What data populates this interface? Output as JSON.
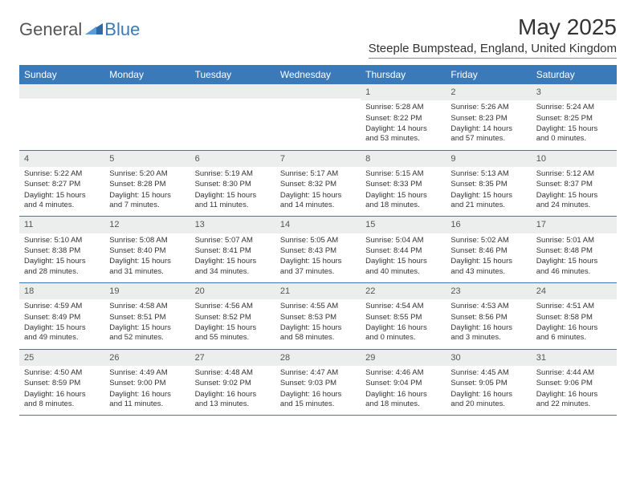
{
  "brand": {
    "general": "General",
    "blue": "Blue"
  },
  "title": "May 2025",
  "location": "Steeple Bumpstead, England, United Kingdom",
  "colors": {
    "header_bg": "#3a7ab8",
    "header_text": "#ffffff",
    "daynum_bg": "#eceded",
    "text": "#333333",
    "border": "#3a7ab8"
  },
  "dayNames": [
    "Sunday",
    "Monday",
    "Tuesday",
    "Wednesday",
    "Thursday",
    "Friday",
    "Saturday"
  ],
  "weeks": [
    [
      {
        "n": "",
        "sr": "",
        "ss": "",
        "dl": ""
      },
      {
        "n": "",
        "sr": "",
        "ss": "",
        "dl": ""
      },
      {
        "n": "",
        "sr": "",
        "ss": "",
        "dl": ""
      },
      {
        "n": "",
        "sr": "",
        "ss": "",
        "dl": ""
      },
      {
        "n": "1",
        "sr": "Sunrise: 5:28 AM",
        "ss": "Sunset: 8:22 PM",
        "dl": "Daylight: 14 hours and 53 minutes."
      },
      {
        "n": "2",
        "sr": "Sunrise: 5:26 AM",
        "ss": "Sunset: 8:23 PM",
        "dl": "Daylight: 14 hours and 57 minutes."
      },
      {
        "n": "3",
        "sr": "Sunrise: 5:24 AM",
        "ss": "Sunset: 8:25 PM",
        "dl": "Daylight: 15 hours and 0 minutes."
      }
    ],
    [
      {
        "n": "4",
        "sr": "Sunrise: 5:22 AM",
        "ss": "Sunset: 8:27 PM",
        "dl": "Daylight: 15 hours and 4 minutes."
      },
      {
        "n": "5",
        "sr": "Sunrise: 5:20 AM",
        "ss": "Sunset: 8:28 PM",
        "dl": "Daylight: 15 hours and 7 minutes."
      },
      {
        "n": "6",
        "sr": "Sunrise: 5:19 AM",
        "ss": "Sunset: 8:30 PM",
        "dl": "Daylight: 15 hours and 11 minutes."
      },
      {
        "n": "7",
        "sr": "Sunrise: 5:17 AM",
        "ss": "Sunset: 8:32 PM",
        "dl": "Daylight: 15 hours and 14 minutes."
      },
      {
        "n": "8",
        "sr": "Sunrise: 5:15 AM",
        "ss": "Sunset: 8:33 PM",
        "dl": "Daylight: 15 hours and 18 minutes."
      },
      {
        "n": "9",
        "sr": "Sunrise: 5:13 AM",
        "ss": "Sunset: 8:35 PM",
        "dl": "Daylight: 15 hours and 21 minutes."
      },
      {
        "n": "10",
        "sr": "Sunrise: 5:12 AM",
        "ss": "Sunset: 8:37 PM",
        "dl": "Daylight: 15 hours and 24 minutes."
      }
    ],
    [
      {
        "n": "11",
        "sr": "Sunrise: 5:10 AM",
        "ss": "Sunset: 8:38 PM",
        "dl": "Daylight: 15 hours and 28 minutes."
      },
      {
        "n": "12",
        "sr": "Sunrise: 5:08 AM",
        "ss": "Sunset: 8:40 PM",
        "dl": "Daylight: 15 hours and 31 minutes."
      },
      {
        "n": "13",
        "sr": "Sunrise: 5:07 AM",
        "ss": "Sunset: 8:41 PM",
        "dl": "Daylight: 15 hours and 34 minutes."
      },
      {
        "n": "14",
        "sr": "Sunrise: 5:05 AM",
        "ss": "Sunset: 8:43 PM",
        "dl": "Daylight: 15 hours and 37 minutes."
      },
      {
        "n": "15",
        "sr": "Sunrise: 5:04 AM",
        "ss": "Sunset: 8:44 PM",
        "dl": "Daylight: 15 hours and 40 minutes."
      },
      {
        "n": "16",
        "sr": "Sunrise: 5:02 AM",
        "ss": "Sunset: 8:46 PM",
        "dl": "Daylight: 15 hours and 43 minutes."
      },
      {
        "n": "17",
        "sr": "Sunrise: 5:01 AM",
        "ss": "Sunset: 8:48 PM",
        "dl": "Daylight: 15 hours and 46 minutes."
      }
    ],
    [
      {
        "n": "18",
        "sr": "Sunrise: 4:59 AM",
        "ss": "Sunset: 8:49 PM",
        "dl": "Daylight: 15 hours and 49 minutes."
      },
      {
        "n": "19",
        "sr": "Sunrise: 4:58 AM",
        "ss": "Sunset: 8:51 PM",
        "dl": "Daylight: 15 hours and 52 minutes."
      },
      {
        "n": "20",
        "sr": "Sunrise: 4:56 AM",
        "ss": "Sunset: 8:52 PM",
        "dl": "Daylight: 15 hours and 55 minutes."
      },
      {
        "n": "21",
        "sr": "Sunrise: 4:55 AM",
        "ss": "Sunset: 8:53 PM",
        "dl": "Daylight: 15 hours and 58 minutes."
      },
      {
        "n": "22",
        "sr": "Sunrise: 4:54 AM",
        "ss": "Sunset: 8:55 PM",
        "dl": "Daylight: 16 hours and 0 minutes."
      },
      {
        "n": "23",
        "sr": "Sunrise: 4:53 AM",
        "ss": "Sunset: 8:56 PM",
        "dl": "Daylight: 16 hours and 3 minutes."
      },
      {
        "n": "24",
        "sr": "Sunrise: 4:51 AM",
        "ss": "Sunset: 8:58 PM",
        "dl": "Daylight: 16 hours and 6 minutes."
      }
    ],
    [
      {
        "n": "25",
        "sr": "Sunrise: 4:50 AM",
        "ss": "Sunset: 8:59 PM",
        "dl": "Daylight: 16 hours and 8 minutes."
      },
      {
        "n": "26",
        "sr": "Sunrise: 4:49 AM",
        "ss": "Sunset: 9:00 PM",
        "dl": "Daylight: 16 hours and 11 minutes."
      },
      {
        "n": "27",
        "sr": "Sunrise: 4:48 AM",
        "ss": "Sunset: 9:02 PM",
        "dl": "Daylight: 16 hours and 13 minutes."
      },
      {
        "n": "28",
        "sr": "Sunrise: 4:47 AM",
        "ss": "Sunset: 9:03 PM",
        "dl": "Daylight: 16 hours and 15 minutes."
      },
      {
        "n": "29",
        "sr": "Sunrise: 4:46 AM",
        "ss": "Sunset: 9:04 PM",
        "dl": "Daylight: 16 hours and 18 minutes."
      },
      {
        "n": "30",
        "sr": "Sunrise: 4:45 AM",
        "ss": "Sunset: 9:05 PM",
        "dl": "Daylight: 16 hours and 20 minutes."
      },
      {
        "n": "31",
        "sr": "Sunrise: 4:44 AM",
        "ss": "Sunset: 9:06 PM",
        "dl": "Daylight: 16 hours and 22 minutes."
      }
    ]
  ]
}
